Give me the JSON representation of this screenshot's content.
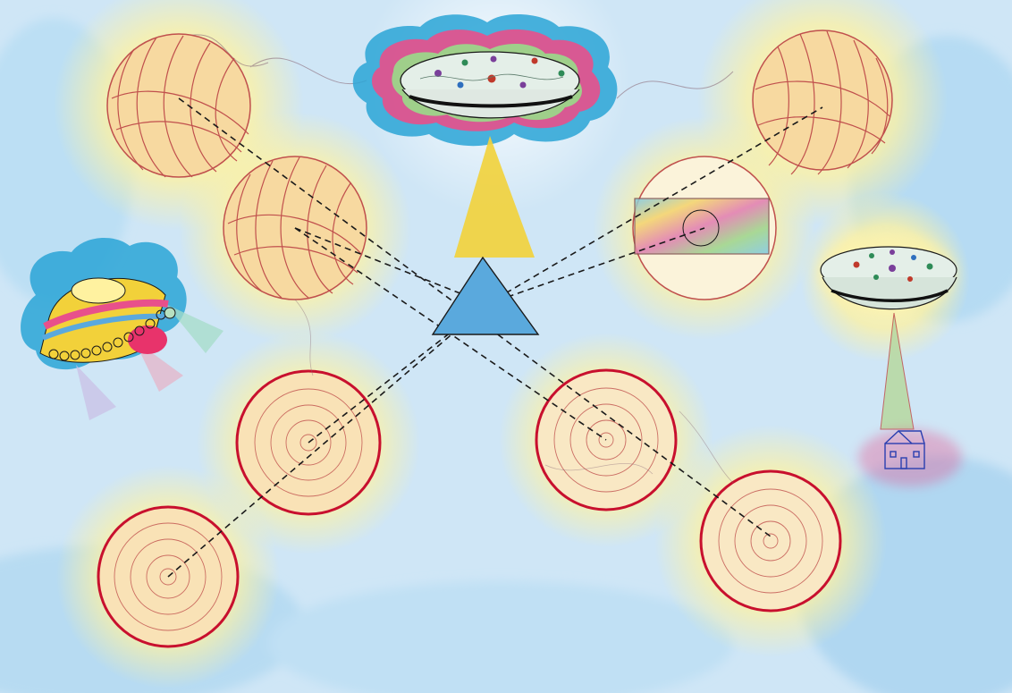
{
  "caption": "",
  "colors": {
    "sky": "#cfe6f6",
    "sky_deep": "#a9d2ef",
    "glow": "#fff3a8",
    "orb_fill": "#f7d9a0",
    "orb_stroke": "#c0504d",
    "ring_stroke": "#c8102e",
    "prism": "#5aa9dd",
    "beam_yellow": "#f2d13a",
    "cloud_blue": "#2aa4d6",
    "cloud_pink": "#e8508b",
    "cloud_green": "#9fcf8a",
    "dashed": "#1a1a1a"
  },
  "icons": {
    "saucer_top": "ufo-saucer-icon",
    "saucer_right": "ufo-saucer-icon",
    "saucer_left": "ufo-spaceship-icon",
    "prism": "triangle-prism-icon",
    "house": "house-icon"
  }
}
